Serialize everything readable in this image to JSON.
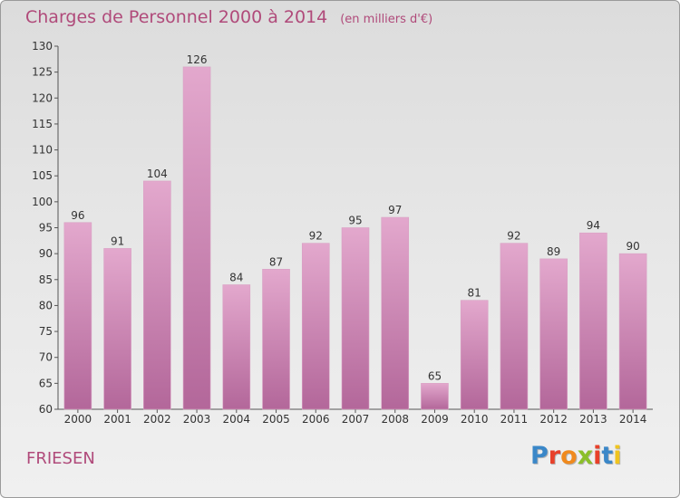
{
  "header": {
    "title": "Charges de Personnel 2000 à 2014",
    "unit": "(en milliers d'€)"
  },
  "commune": "FRIESEN",
  "logo": {
    "text": "Proxiti",
    "colors": [
      "#3a87c8",
      "#e8402a",
      "#f08a1e",
      "#8bbf2a",
      "#e8402a",
      "#3a87c8",
      "#f0c41e"
    ]
  },
  "chart_data": {
    "type": "bar",
    "title": "Charges de Personnel 2000 à 2014",
    "unit": "(en milliers d'€)",
    "categories": [
      "2000",
      "2001",
      "2002",
      "2003",
      "2004",
      "2005",
      "2006",
      "2007",
      "2008",
      "2009",
      "2010",
      "2011",
      "2012",
      "2013",
      "2014"
    ],
    "values": [
      96,
      91,
      104,
      126,
      84,
      87,
      92,
      95,
      97,
      65,
      81,
      92,
      89,
      94,
      90
    ],
    "ylim": [
      60,
      130
    ],
    "yticks": [
      60,
      65,
      70,
      75,
      80,
      85,
      90,
      95,
      100,
      105,
      110,
      115,
      120,
      125,
      130
    ],
    "bar_color_top": "#e3a8cd",
    "bar_color_bottom": "#b3679a",
    "grid": false
  }
}
